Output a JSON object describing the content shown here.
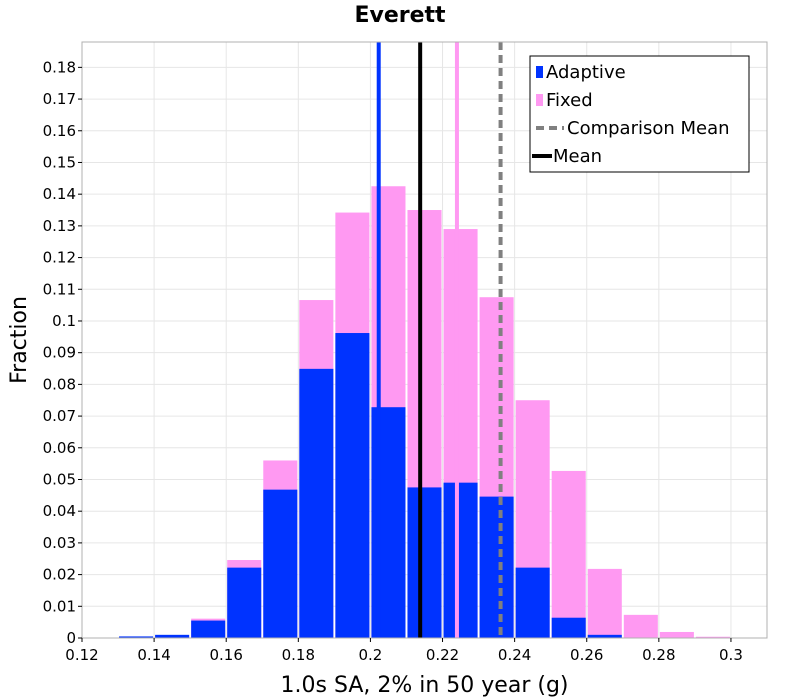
{
  "chart_data": {
    "type": "bar",
    "title": "Everett",
    "xlabel": "1.0s SA, 2% in 50 year (g)",
    "ylabel": "Fraction",
    "xlim": [
      0.12,
      0.31
    ],
    "ylim": [
      0,
      0.188
    ],
    "grid": true,
    "legend_position": "top-right",
    "bin_width": 0.01,
    "x_ticks": [
      0.12,
      0.14,
      0.16,
      0.18,
      0.2,
      0.22,
      0.24,
      0.26,
      0.28,
      0.3
    ],
    "x_tick_labels": [
      "0.12",
      "0.14",
      "0.16",
      "0.18",
      "0.2",
      "0.22",
      "0.24",
      "0.26",
      "0.28",
      "0.3"
    ],
    "y_ticks": [
      0,
      0.01,
      0.02,
      0.03,
      0.04,
      0.05,
      0.06,
      0.07,
      0.08,
      0.09,
      0.1,
      0.11,
      0.12,
      0.13,
      0.14,
      0.15,
      0.16,
      0.17,
      0.18
    ],
    "y_tick_labels": [
      "0",
      "0.01",
      "0.02",
      "0.03",
      "0.04",
      "0.05",
      "0.06",
      "0.07",
      "0.08",
      "0.09",
      "0.1",
      "0.11",
      "0.12",
      "0.13",
      "0.14",
      "0.15",
      "0.16",
      "0.17",
      "0.18"
    ],
    "bin_centers": [
      0.125,
      0.135,
      0.145,
      0.155,
      0.165,
      0.175,
      0.185,
      0.195,
      0.205,
      0.215,
      0.225,
      0.235,
      0.245,
      0.255,
      0.265,
      0.275,
      0.285,
      0.295,
      0.305
    ],
    "series": [
      {
        "name": "Fixed",
        "color": "#ff99f2",
        "values": [
          0.0,
          0.0002,
          0.0008,
          0.0061,
          0.0246,
          0.056,
          0.1066,
          0.1342,
          0.1425,
          0.135,
          0.129,
          0.1075,
          0.075,
          0.0527,
          0.0218,
          0.0073,
          0.0019,
          0.0004,
          0.0001
        ]
      },
      {
        "name": "Adaptive",
        "color": "#0033ff",
        "values": [
          0.0,
          0.0005,
          0.001,
          0.0055,
          0.0222,
          0.0468,
          0.0849,
          0.0962,
          0.0728,
          0.0475,
          0.049,
          0.0446,
          0.0222,
          0.0064,
          0.001,
          0.0,
          0.0,
          0.0,
          0.0
        ]
      }
    ],
    "reference_lines": [
      {
        "name": "Mean",
        "value": 0.2138,
        "color": "#000000",
        "style": "solid",
        "width": 4
      },
      {
        "name": "Comparison Mean",
        "value": 0.2361,
        "color": "#808080",
        "style": "dashed",
        "width": 4
      },
      {
        "name": "Adaptive mean",
        "value": 0.2023,
        "color": "#0033ff",
        "style": "solid",
        "width": 4
      },
      {
        "name": "Fixed mean",
        "value": 0.224,
        "color": "#ff99f2",
        "style": "solid",
        "width": 4
      }
    ],
    "legend": [
      {
        "label": "Adaptive",
        "color": "#0033ff",
        "symbol": "square"
      },
      {
        "label": "Fixed",
        "color": "#ff99f2",
        "symbol": "square"
      },
      {
        "label": "Comparison Mean",
        "color": "#808080",
        "symbol": "dashed-line"
      },
      {
        "label": "Mean",
        "color": "#000000",
        "symbol": "solid-line"
      }
    ]
  }
}
